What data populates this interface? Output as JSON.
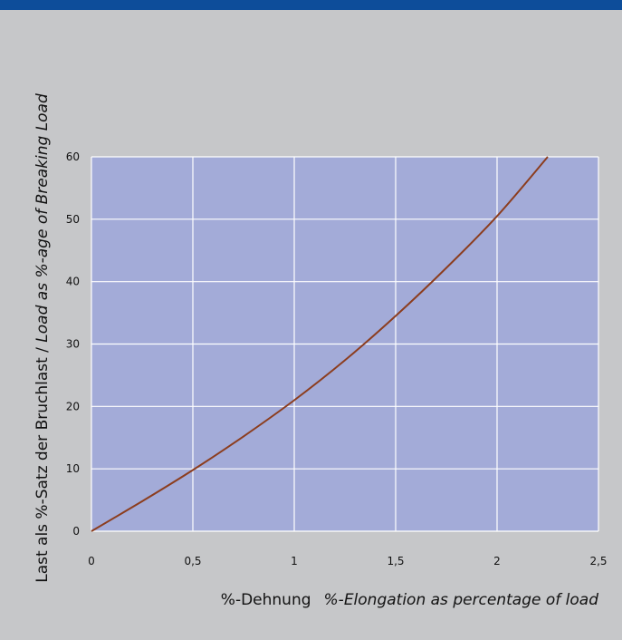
{
  "colors": {
    "background": "#c6c7c9",
    "top_bar": "#0d4d9a",
    "plot_area": "#a3abd8",
    "grid": "#ffffff",
    "curve": "#8c3d1e"
  },
  "chart_data": {
    "type": "line",
    "title": "",
    "xlabel_de": "%-Dehnung",
    "xlabel_en": "%-Elongation as percentage of load",
    "ylabel_de": "Last als %-Satz der Bruchlast / ",
    "ylabel_en": "Load as %-age of Breaking Load",
    "xlim": [
      0,
      2.5
    ],
    "ylim": [
      0,
      60
    ],
    "grid": true,
    "x_ticks": [
      0,
      0.5,
      1,
      1.5,
      2,
      2.5
    ],
    "x_tick_labels": [
      "0",
      "0,5",
      "1",
      "1,5",
      "2",
      "2,5"
    ],
    "y_ticks": [
      0,
      10,
      20,
      30,
      40,
      50,
      60
    ],
    "y_tick_labels": [
      "0",
      "10",
      "20",
      "30",
      "40",
      "50",
      "60"
    ],
    "series": [
      {
        "x": [
          0,
          0.25,
          0.5,
          0.75,
          1.0,
          1.25,
          1.5,
          1.75,
          2.0,
          2.25
        ],
        "y": [
          0,
          4.8,
          9.8,
          15.2,
          21.0,
          27.4,
          34.5,
          42.2,
          50.5,
          60.0
        ]
      }
    ]
  }
}
